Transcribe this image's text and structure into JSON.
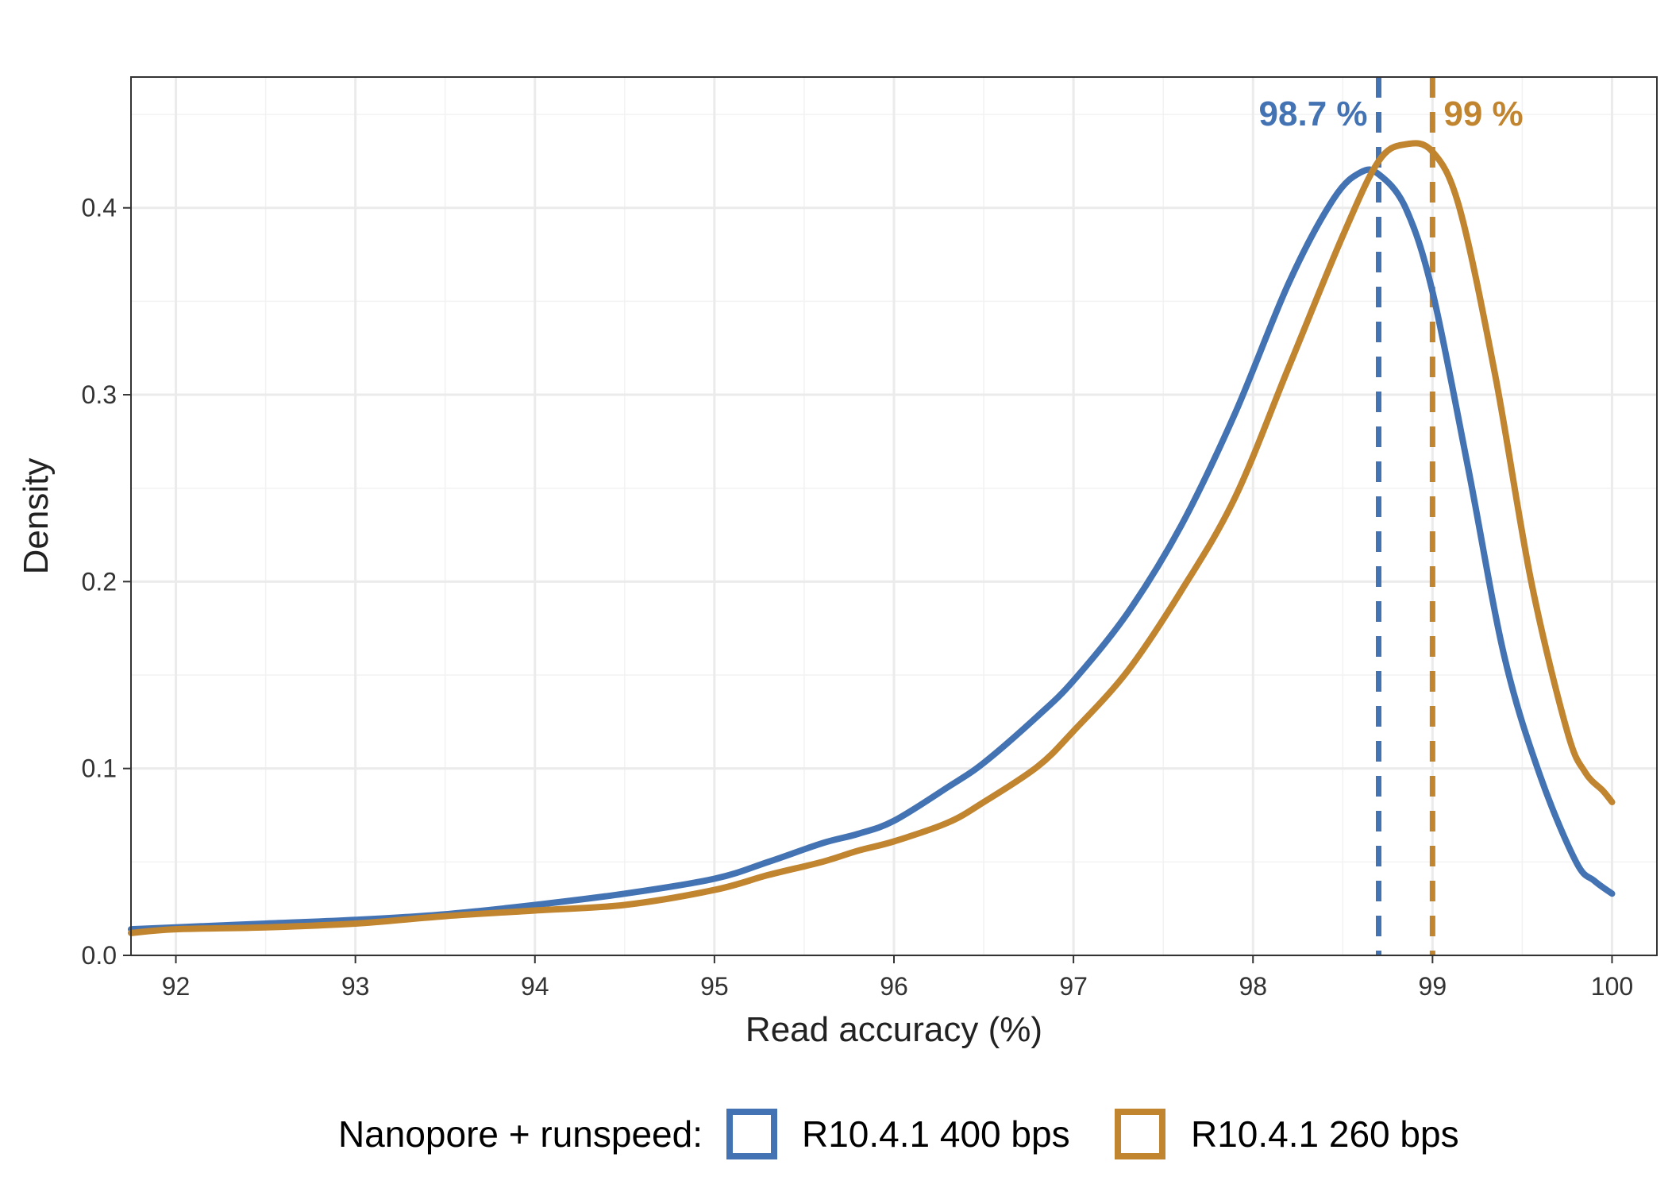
{
  "chart_data": {
    "type": "line",
    "title": "",
    "xlabel": "Read accuracy (%)",
    "ylabel": "Density",
    "xlim": [
      91.75,
      100.25
    ],
    "ylim": [
      0,
      0.47
    ],
    "x_ticks": [
      92,
      93,
      94,
      95,
      96,
      97,
      98,
      99,
      100
    ],
    "x_tick_labels": [
      "92",
      "93",
      "94",
      "95",
      "96",
      "97",
      "98",
      "99",
      "100"
    ],
    "y_ticks": [
      0.0,
      0.1,
      0.2,
      0.3,
      0.4
    ],
    "y_tick_labels": [
      "0.0",
      "0.1",
      "0.2",
      "0.3",
      "0.4"
    ],
    "grid": true,
    "legend": {
      "position": "bottom",
      "title": "Nanopore + runspeed:"
    },
    "series": [
      {
        "name": "R10.4.1 400 bps",
        "color": "#4473B4",
        "x": [
          91.75,
          92.0,
          92.5,
          93.0,
          93.5,
          94.0,
          94.5,
          95.0,
          95.3,
          95.6,
          95.8,
          96.0,
          96.3,
          96.5,
          96.8,
          97.0,
          97.3,
          97.6,
          97.9,
          98.2,
          98.45,
          98.6,
          98.7,
          98.85,
          99.0,
          99.2,
          99.4,
          99.6,
          99.8,
          99.9,
          100.0
        ],
        "y": [
          0.014,
          0.015,
          0.017,
          0.019,
          0.022,
          0.027,
          0.033,
          0.041,
          0.05,
          0.06,
          0.065,
          0.072,
          0.09,
          0.103,
          0.128,
          0.147,
          0.183,
          0.23,
          0.29,
          0.36,
          0.405,
          0.419,
          0.418,
          0.4,
          0.355,
          0.26,
          0.16,
          0.096,
          0.05,
          0.04,
          0.033
        ]
      },
      {
        "name": "R10.4.1 260 bps",
        "color": "#C1842F",
        "x": [
          91.75,
          92.0,
          92.5,
          93.0,
          93.5,
          94.0,
          94.5,
          95.0,
          95.3,
          95.6,
          95.8,
          96.0,
          96.3,
          96.5,
          96.8,
          97.0,
          97.3,
          97.6,
          97.9,
          98.2,
          98.5,
          98.7,
          98.85,
          99.0,
          99.15,
          99.35,
          99.55,
          99.75,
          99.85,
          99.95,
          100.0
        ],
        "y": [
          0.012,
          0.014,
          0.015,
          0.017,
          0.021,
          0.024,
          0.027,
          0.035,
          0.043,
          0.05,
          0.056,
          0.061,
          0.071,
          0.082,
          0.101,
          0.12,
          0.152,
          0.195,
          0.245,
          0.315,
          0.385,
          0.425,
          0.434,
          0.43,
          0.4,
          0.31,
          0.2,
          0.12,
          0.098,
          0.088,
          0.082
        ]
      }
    ],
    "vlines": [
      {
        "x": 98.7,
        "color": "#4473B4",
        "style": "dashed",
        "label": "98.7 %"
      },
      {
        "x": 99.0,
        "color": "#C1842F",
        "style": "dashed",
        "label": "99 %"
      }
    ]
  }
}
